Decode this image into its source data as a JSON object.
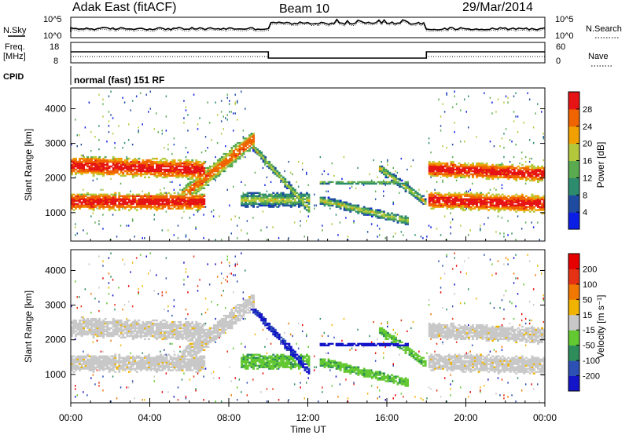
{
  "header": {
    "radar": "Adak East (fitACF)",
    "beam": "Beam 10",
    "date": "29/Mar/2014"
  },
  "panels": {
    "nsky_label": "N.Sky",
    "nsky_ticks": [
      "10^5",
      "10^0"
    ],
    "nsearch_label": "N.Search",
    "nsearch_ticks": [
      "10^5",
      "10^0"
    ],
    "freq_label_1": "Freq.",
    "freq_label_2": "[MHz]",
    "freq_ticks": [
      "18",
      "8"
    ],
    "nave_label": "Nave",
    "nave_ticks": [
      "60",
      "0"
    ],
    "cpid_label": "CPID",
    "cpid_text": "normal (fast) 151 RF"
  },
  "chart_data": [
    {
      "type": "heatmap",
      "name": "power",
      "ylabel": "Slant Range [km]",
      "yticks": [
        "1000",
        "2000",
        "3000",
        "4000"
      ],
      "ylim": [
        180,
        4600
      ],
      "xlim": [
        0,
        24
      ],
      "colorbar": {
        "label": "Power [dB]",
        "ticks": [
          "4",
          "8",
          "12",
          "16",
          "20",
          "24",
          "28"
        ],
        "colors": [
          "#0a1ee6",
          "#1e4ba0",
          "#2d8c6e",
          "#5aaa50",
          "#b4c83c",
          "#f0a000",
          "#f06400",
          "#e61414"
        ]
      }
    },
    {
      "type": "heatmap",
      "name": "velocity",
      "ylabel": "Slant Range [km]",
      "yticks": [
        "1000",
        "2000",
        "3000",
        "4000"
      ],
      "ylim": [
        180,
        4600
      ],
      "xlim": [
        0,
        24
      ],
      "colorbar": {
        "label": "Velocity [m s⁻¹]",
        "ticks": [
          "200",
          "100",
          "50",
          "15",
          "-15",
          "-50",
          "-100",
          "-200"
        ],
        "colors": [
          "#1414c8",
          "#2d50b4",
          "#2d8c5a",
          "#64c832",
          "#c8c8c8",
          "#f0b400",
          "#f07800",
          "#e63214",
          "#e60000"
        ]
      }
    }
  ],
  "xaxis": {
    "ticks": [
      "00:00",
      "04:00",
      "08:00",
      "12:00",
      "16:00",
      "20:00",
      "00:00"
    ],
    "label": "Time UT"
  }
}
